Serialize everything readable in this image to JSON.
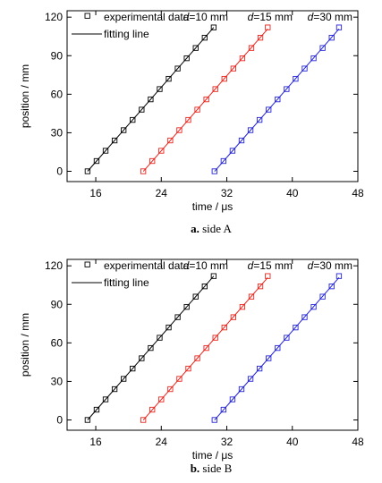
{
  "chart_data": [
    {
      "type": "line",
      "panel": "a",
      "caption_letter": "a.",
      "caption_text": "side A",
      "xlabel": "time / μs",
      "ylabel": "position / mm",
      "xlim": [
        12.5,
        48
      ],
      "ylim": [
        -8,
        125
      ],
      "xticks": [
        16,
        24,
        32,
        40,
        48
      ],
      "yticks": [
        0,
        30,
        60,
        90,
        120
      ],
      "legend": {
        "placement": "top-left",
        "marker_label": "experimental data",
        "line_label": "fitting line"
      },
      "series": [
        {
          "name": "d=10 mm",
          "name_italic": "d",
          "name_rest": "=10 mm",
          "color": "#000000",
          "x": [
            15.0,
            16.1,
            17.2,
            18.3,
            19.4,
            20.5,
            21.6,
            22.7,
            23.8,
            24.9,
            26.0,
            27.1,
            28.2,
            29.3,
            30.4
          ],
          "y": [
            0,
            8,
            16,
            24,
            32,
            40,
            48,
            56,
            64,
            72,
            80,
            88,
            96,
            104,
            112
          ]
        },
        {
          "name": "d=15 mm",
          "name_italic": "d",
          "name_rest": "=15 mm",
          "color": "#e8241c",
          "x": [
            21.8,
            22.9,
            24.0,
            25.1,
            26.2,
            27.3,
            28.4,
            29.5,
            30.6,
            31.7,
            32.8,
            33.9,
            35.0,
            36.1,
            37.0
          ],
          "y": [
            0,
            8,
            16,
            24,
            32,
            40,
            48,
            56,
            64,
            72,
            80,
            88,
            96,
            104,
            112
          ]
        },
        {
          "name": "d=30 mm",
          "name_italic": "d",
          "name_rest": "=30 mm",
          "color": "#2323d6",
          "x": [
            30.5,
            31.6,
            32.7,
            33.8,
            34.9,
            36.0,
            37.1,
            38.2,
            39.3,
            40.4,
            41.5,
            42.6,
            43.7,
            44.8,
            45.7
          ],
          "y": [
            0,
            8,
            16,
            24,
            32,
            40,
            48,
            56,
            64,
            72,
            80,
            88,
            96,
            104,
            112
          ]
        }
      ]
    },
    {
      "type": "line",
      "panel": "b",
      "caption_letter": "b.",
      "caption_text": "side B",
      "xlabel": "time / μs",
      "ylabel": "position / mm",
      "xlim": [
        12.5,
        48
      ],
      "ylim": [
        -8,
        125
      ],
      "xticks": [
        16,
        24,
        32,
        40,
        48
      ],
      "yticks": [
        0,
        30,
        60,
        90,
        120
      ],
      "legend": {
        "placement": "top-left",
        "marker_label": "experimental data",
        "line_label": "fitting line"
      },
      "series": [
        {
          "name": "d=10 mm",
          "name_italic": "d",
          "name_rest": "=10 mm",
          "color": "#000000",
          "x": [
            15.0,
            16.1,
            17.2,
            18.3,
            19.4,
            20.5,
            21.6,
            22.7,
            23.8,
            24.9,
            26.0,
            27.1,
            28.2,
            29.3,
            30.4
          ],
          "y": [
            0,
            8,
            16,
            24,
            32,
            40,
            48,
            56,
            64,
            72,
            80,
            88,
            96,
            104,
            112
          ]
        },
        {
          "name": "d=15 mm",
          "name_italic": "d",
          "name_rest": "=15 mm",
          "color": "#e8241c",
          "x": [
            21.8,
            22.9,
            24.0,
            25.1,
            26.2,
            27.3,
            28.4,
            29.5,
            30.6,
            31.7,
            32.8,
            33.9,
            35.0,
            36.1,
            37.0
          ],
          "y": [
            0,
            8,
            16,
            24,
            32,
            40,
            48,
            56,
            64,
            72,
            80,
            88,
            96,
            104,
            112
          ]
        },
        {
          "name": "d=30 mm",
          "name_italic": "d",
          "name_rest": "=30 mm",
          "color": "#2323d6",
          "x": [
            30.5,
            31.6,
            32.7,
            33.8,
            34.9,
            36.0,
            37.1,
            38.2,
            39.3,
            40.4,
            41.5,
            42.6,
            43.7,
            44.8,
            45.7
          ],
          "y": [
            0,
            8,
            16,
            24,
            32,
            40,
            48,
            56,
            64,
            72,
            80,
            88,
            96,
            104,
            112
          ]
        }
      ]
    }
  ]
}
